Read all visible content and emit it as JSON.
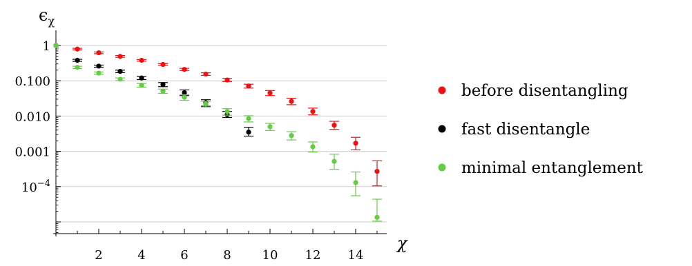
{
  "chart_data": {
    "type": "scatter",
    "title": "",
    "xlabel": "χ",
    "ylabel": "ϵ_χ",
    "xlabel_text": "χ",
    "ylabel_main": "ϵ",
    "ylabel_sub": "χ",
    "x_scale": "linear",
    "y_scale": "log",
    "xlim": [
      0,
      15.3
    ],
    "ylim": [
      5e-07,
      2
    ],
    "x_ticks": [
      2,
      4,
      6,
      8,
      10,
      12,
      14
    ],
    "y_ticks": [
      {
        "value": 1,
        "label": "1"
      },
      {
        "value": 0.1,
        "label": "0.100"
      },
      {
        "value": 0.01,
        "label": "0.010"
      },
      {
        "value": 0.001,
        "label": "0.001"
      },
      {
        "value": 0.0001,
        "label": "10",
        "sup": "−4"
      },
      {
        "value": 1e-05,
        "label": ""
      }
    ],
    "grid": "horizontal",
    "legend_position": "right",
    "series": [
      {
        "name": "before disentangling",
        "color": "#ee1111",
        "x": [
          0,
          1,
          2,
          3,
          4,
          5,
          6,
          7,
          8,
          9,
          10,
          11,
          12,
          13,
          14,
          15
        ],
        "y": [
          1.0,
          0.79,
          0.62,
          0.49,
          0.38,
          0.29,
          0.21,
          0.155,
          0.105,
          0.071,
          0.045,
          0.026,
          0.0135,
          0.0055,
          0.0017,
          0.00027
        ],
        "err_low": [
          1.0,
          0.75,
          0.585,
          0.462,
          0.358,
          0.272,
          0.196,
          0.142,
          0.095,
          0.062,
          0.038,
          0.021,
          0.0108,
          0.0042,
          0.0011,
          0.000105
        ],
        "err_high": [
          1.0,
          0.83,
          0.655,
          0.52,
          0.4,
          0.305,
          0.225,
          0.168,
          0.117,
          0.08,
          0.053,
          0.032,
          0.0168,
          0.0071,
          0.0025,
          0.00054
        ]
      },
      {
        "name": "fast disentangle",
        "color": "#000000",
        "x": [
          0,
          1,
          2,
          3,
          4,
          5,
          6,
          7,
          8,
          9
        ],
        "y": [
          1.0,
          0.38,
          0.26,
          0.185,
          0.12,
          0.078,
          0.046,
          0.024,
          0.011,
          0.0035
        ],
        "err_low": [
          1.0,
          0.355,
          0.242,
          0.17,
          0.108,
          0.068,
          0.038,
          0.019,
          0.0091,
          0.0027
        ],
        "err_high": [
          1.0,
          0.405,
          0.278,
          0.2,
          0.132,
          0.089,
          0.055,
          0.029,
          0.0135,
          0.0048
        ]
      },
      {
        "name": "minimal entanglement",
        "color": "#66cc44",
        "x": [
          0,
          1,
          2,
          3,
          4,
          5,
          6,
          7,
          8,
          9,
          10,
          11,
          12,
          13,
          14,
          15
        ],
        "y": [
          1.0,
          0.24,
          0.165,
          0.11,
          0.075,
          0.051,
          0.034,
          0.022,
          0.0135,
          0.0085,
          0.005,
          0.0028,
          0.00135,
          0.00052,
          0.00013,
          1.35e-05
        ],
        "err_low": [
          1.0,
          0.222,
          0.152,
          0.1,
          0.066,
          0.044,
          0.028,
          0.018,
          0.0106,
          0.0068,
          0.0039,
          0.0021,
          0.00095,
          0.00031,
          5.5e-05,
          1.05e-05
        ],
        "err_high": [
          1.0,
          0.258,
          0.178,
          0.12,
          0.084,
          0.058,
          0.04,
          0.026,
          0.0162,
          0.0102,
          0.0062,
          0.0036,
          0.00185,
          0.00083,
          0.00026,
          4.4e-05
        ]
      }
    ]
  }
}
